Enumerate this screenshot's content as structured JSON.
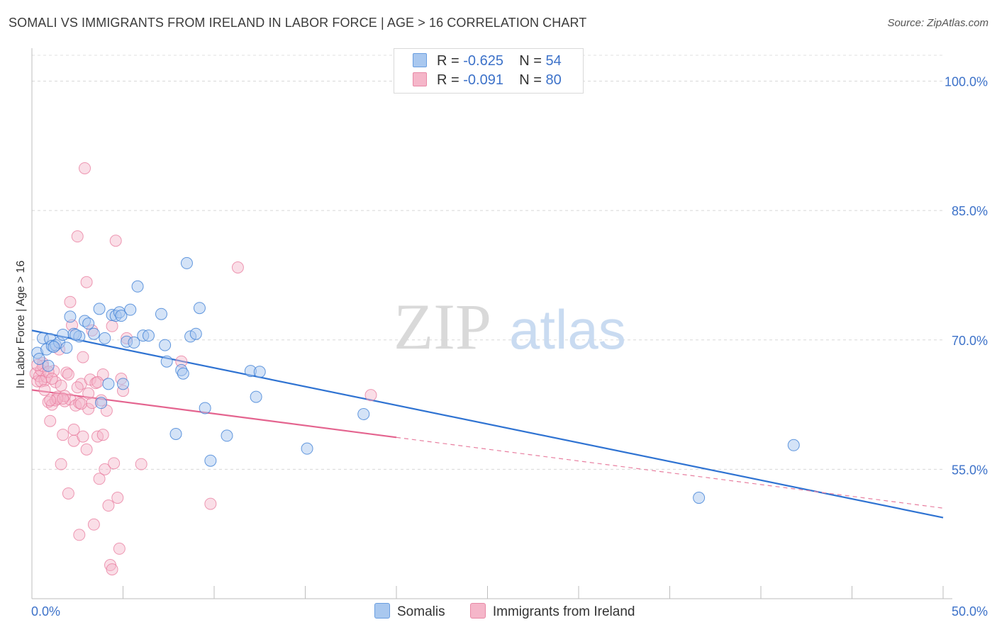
{
  "header": {
    "title": "SOMALI VS IMMIGRANTS FROM IRELAND IN LABOR FORCE | AGE > 16 CORRELATION CHART",
    "source": "Source: ZipAtlas.com"
  },
  "watermark": {
    "left": "ZIP",
    "right": "atlas"
  },
  "legend": {
    "rows": [
      {
        "r_label": "R =",
        "r_value": "-0.625",
        "n_label": "N =",
        "n_value": "54",
        "color": "#a9c8ef"
      },
      {
        "r_label": "R =",
        "r_value": "-0.091",
        "n_label": "N =",
        "n_value": "80",
        "color": "#f5b6c9"
      }
    ]
  },
  "bottom_legend": [
    {
      "label": "Somalis",
      "color": "#a9c8ef"
    },
    {
      "label": "Immigrants from Ireland",
      "color": "#f5b6c9"
    }
  ],
  "chart_data": {
    "type": "scatter",
    "title": "SOMALI VS IMMIGRANTS FROM IRELAND IN LABOR FORCE | AGE > 16 CORRELATION CHART",
    "xlabel": "",
    "ylabel": "In Labor Force | Age > 16",
    "xlim": [
      0,
      50
    ],
    "ylim": [
      40,
      103
    ],
    "x_tick_labels": [
      "0.0%",
      "50.0%"
    ],
    "y_ticks": [
      55,
      70,
      85,
      100
    ],
    "y_tick_labels": [
      "55.0%",
      "70.0%",
      "85.0%",
      "100.0%"
    ],
    "grid": true,
    "series": [
      {
        "name": "Somalis",
        "color": "#3d7fd6",
        "fill": "#a9c8ef",
        "points": [
          [
            0.3,
            68.5
          ],
          [
            0.4,
            67.8
          ],
          [
            0.6,
            70.2
          ],
          [
            0.8,
            68.9
          ],
          [
            1.0,
            70.1
          ],
          [
            1.1,
            69.3
          ],
          [
            1.3,
            69.4
          ],
          [
            1.5,
            69.7
          ],
          [
            1.7,
            70.6
          ],
          [
            1.9,
            69.1
          ],
          [
            2.1,
            72.7
          ],
          [
            2.3,
            70.7
          ],
          [
            2.6,
            70.4
          ],
          [
            2.9,
            72.2
          ],
          [
            3.1,
            71.9
          ],
          [
            3.4,
            70.7
          ],
          [
            3.7,
            73.6
          ],
          [
            4.0,
            70.2
          ],
          [
            4.2,
            64.9
          ],
          [
            4.4,
            72.9
          ],
          [
            4.6,
            72.8
          ],
          [
            4.8,
            73.2
          ],
          [
            5.0,
            64.9
          ],
          [
            5.2,
            69.8
          ],
          [
            5.4,
            73.5
          ],
          [
            5.6,
            69.7
          ],
          [
            5.8,
            76.2
          ],
          [
            6.1,
            70.5
          ],
          [
            6.4,
            70.5
          ],
          [
            7.1,
            73.0
          ],
          [
            7.3,
            69.4
          ],
          [
            7.4,
            67.5
          ],
          [
            7.9,
            59.1
          ],
          [
            8.2,
            66.5
          ],
          [
            8.3,
            66.1
          ],
          [
            8.5,
            78.9
          ],
          [
            8.7,
            70.4
          ],
          [
            9.0,
            70.7
          ],
          [
            9.2,
            73.7
          ],
          [
            9.5,
            62.1
          ],
          [
            9.8,
            56.0
          ],
          [
            10.7,
            58.9
          ],
          [
            12.0,
            66.4
          ],
          [
            12.3,
            63.4
          ],
          [
            12.5,
            66.3
          ],
          [
            15.1,
            57.4
          ],
          [
            3.8,
            62.7
          ],
          [
            18.2,
            61.4
          ],
          [
            36.6,
            51.7
          ],
          [
            41.8,
            57.8
          ],
          [
            2.4,
            70.6
          ],
          [
            1.2,
            69.2
          ],
          [
            0.9,
            67.0
          ],
          [
            4.9,
            72.8
          ]
        ],
        "trend": {
          "x": [
            0,
            50
          ],
          "y": [
            71.1,
            49.4
          ]
        }
      },
      {
        "name": "Immigrants from Ireland",
        "color": "#e8799c",
        "fill": "#f5b6c9",
        "points": [
          [
            0.2,
            66.1
          ],
          [
            0.3,
            65.2
          ],
          [
            0.4,
            65.8
          ],
          [
            0.5,
            66.5
          ],
          [
            0.6,
            67.3
          ],
          [
            0.7,
            65.3
          ],
          [
            0.8,
            65.7
          ],
          [
            0.9,
            62.8
          ],
          [
            1.0,
            60.6
          ],
          [
            1.1,
            62.5
          ],
          [
            1.2,
            66.4
          ],
          [
            1.3,
            65.1
          ],
          [
            1.4,
            63.4
          ],
          [
            1.5,
            68.9
          ],
          [
            1.6,
            55.6
          ],
          [
            1.7,
            59.0
          ],
          [
            1.8,
            62.9
          ],
          [
            1.9,
            66.2
          ],
          [
            2.0,
            52.2
          ],
          [
            2.1,
            63.1
          ],
          [
            2.2,
            71.7
          ],
          [
            2.3,
            59.6
          ],
          [
            2.4,
            62.4
          ],
          [
            2.5,
            82.0
          ],
          [
            2.6,
            47.4
          ],
          [
            2.7,
            64.9
          ],
          [
            2.8,
            68.0
          ],
          [
            2.9,
            89.9
          ],
          [
            3.0,
            76.7
          ],
          [
            3.1,
            62.0
          ],
          [
            3.2,
            65.4
          ],
          [
            3.3,
            71.1
          ],
          [
            3.4,
            48.6
          ],
          [
            3.5,
            65.0
          ],
          [
            3.6,
            58.8
          ],
          [
            3.7,
            53.9
          ],
          [
            3.8,
            63.0
          ],
          [
            3.9,
            66.0
          ],
          [
            4.0,
            55.0
          ],
          [
            4.1,
            61.8
          ],
          [
            4.2,
            50.8
          ],
          [
            4.3,
            43.9
          ],
          [
            4.4,
            43.4
          ],
          [
            4.5,
            55.7
          ],
          [
            4.6,
            81.5
          ],
          [
            4.7,
            51.7
          ],
          [
            4.8,
            45.8
          ],
          [
            4.9,
            65.5
          ],
          [
            5.0,
            64.1
          ],
          [
            5.2,
            70.2
          ],
          [
            6.0,
            55.6
          ],
          [
            0.5,
            65.2
          ],
          [
            0.6,
            67.0
          ],
          [
            0.7,
            64.2
          ],
          [
            0.9,
            66.3
          ],
          [
            1.1,
            65.5
          ],
          [
            1.3,
            63.0
          ],
          [
            1.6,
            64.7
          ],
          [
            1.8,
            63.5
          ],
          [
            2.0,
            66.0
          ],
          [
            2.3,
            58.3
          ],
          [
            2.5,
            64.5
          ],
          [
            2.8,
            58.8
          ],
          [
            3.0,
            57.3
          ],
          [
            3.3,
            62.7
          ],
          [
            3.6,
            65.1
          ],
          [
            3.9,
            59.0
          ],
          [
            4.4,
            71.6
          ],
          [
            1.4,
            63.2
          ],
          [
            2.1,
            74.4
          ],
          [
            2.6,
            62.7
          ],
          [
            3.1,
            63.8
          ],
          [
            0.3,
            67.1
          ],
          [
            1.0,
            63.0
          ],
          [
            1.7,
            63.2
          ],
          [
            8.2,
            67.5
          ],
          [
            9.8,
            51.0
          ],
          [
            11.3,
            78.4
          ],
          [
            18.6,
            63.6
          ],
          [
            2.7,
            62.6
          ]
        ],
        "trend_solid": {
          "x": [
            0,
            20
          ],
          "y": [
            64.2,
            58.7
          ]
        },
        "trend_dashed": {
          "x": [
            20,
            50
          ],
          "y": [
            58.7,
            50.5
          ]
        }
      }
    ]
  }
}
